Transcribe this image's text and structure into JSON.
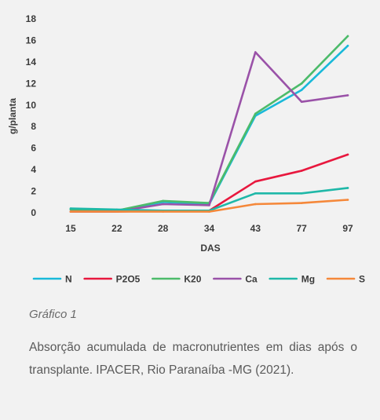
{
  "chart_data": {
    "type": "line",
    "categories": [
      "15",
      "22",
      "28",
      "34",
      "43",
      "77",
      "97"
    ],
    "xlabel": "DAS",
    "ylabel": "g/planta",
    "ylim": [
      0,
      18
    ],
    "yticks": [
      0,
      2,
      4,
      6,
      8,
      10,
      12,
      14,
      16,
      18
    ],
    "grid": false,
    "legend_position": "bottom",
    "series": [
      {
        "name": "N",
        "color": "#19b9d9",
        "values": [
          0.3,
          0.2,
          1.0,
          0.8,
          9.0,
          11.4,
          15.5
        ]
      },
      {
        "name": "P2O5",
        "color": "#e8183e",
        "values": [
          0.1,
          0.1,
          0.2,
          0.2,
          2.9,
          3.9,
          5.4
        ]
      },
      {
        "name": "K20",
        "color": "#4cbb6a",
        "values": [
          0.3,
          0.2,
          1.1,
          0.9,
          9.2,
          12.0,
          16.4
        ]
      },
      {
        "name": "Ca",
        "color": "#9a52a8",
        "values": [
          0.1,
          0.1,
          0.8,
          0.7,
          14.9,
          10.3,
          10.9
        ]
      },
      {
        "name": "Mg",
        "color": "#1fb8a8",
        "values": [
          0.4,
          0.3,
          0.2,
          0.2,
          1.8,
          1.8,
          2.3
        ]
      },
      {
        "name": "S",
        "color": "#f5883a",
        "values": [
          0.1,
          0.1,
          0.1,
          0.1,
          0.8,
          0.9,
          1.2
        ]
      }
    ]
  },
  "caption": {
    "label": "Gráfico 1",
    "text": "Absorção acumulada de macronutrientes em dias após o transplante. IPACER, Rio Paranaíba -MG (2021)."
  }
}
